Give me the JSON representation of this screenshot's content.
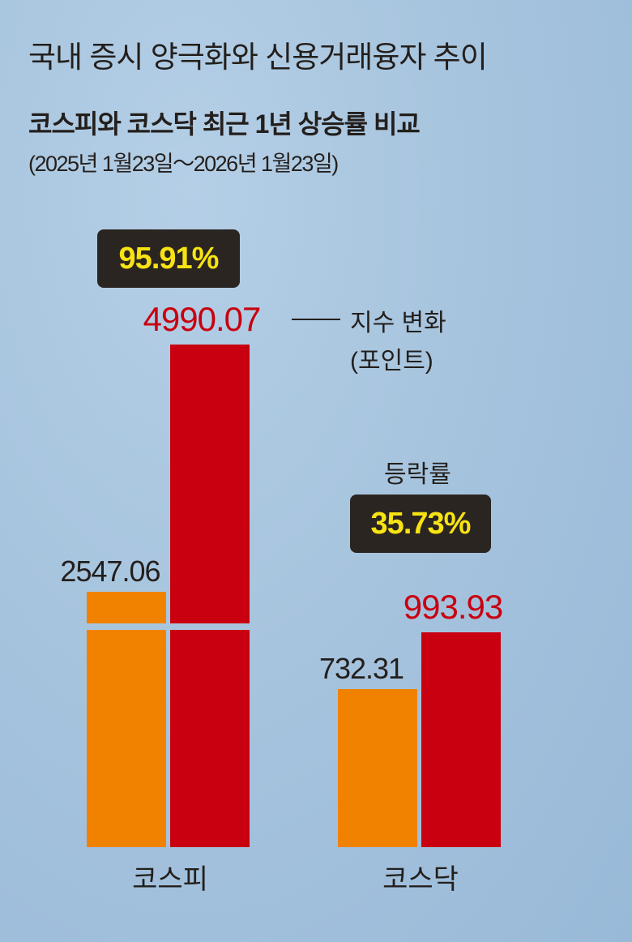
{
  "title": "국내 증시 양극화와 신용거래융자 추이",
  "subtitle": "코스피와 코스닥 최근 1년 상승률 비교",
  "period": "(2025년 1월23일～2026년 1월23일)",
  "legend": {
    "label": "지수 변화",
    "unit": "(포인트)",
    "rate_label": "등락률"
  },
  "colors": {
    "start": "#f08200",
    "end": "#c8000f",
    "badge_bg": "#2b2521",
    "badge_text": "#f7e313"
  },
  "chart_data": {
    "type": "bar",
    "title": "코스피와 코스닥 최근 1년 상승률 비교",
    "categories": [
      "코스피",
      "코스닥"
    ],
    "series": [
      {
        "values": [
          2547.06,
          732.31
        ],
        "labels": [
          "2547.06",
          "732.31"
        ],
        "color": "#f08200"
      },
      {
        "values": [
          4990.07,
          993.93
        ],
        "labels": [
          "4990.07",
          "993.93"
        ],
        "color": "#c8000f"
      }
    ],
    "change_rates": [
      "95.91%",
      "35.73%"
    ],
    "axis_break": true,
    "grid": false
  }
}
